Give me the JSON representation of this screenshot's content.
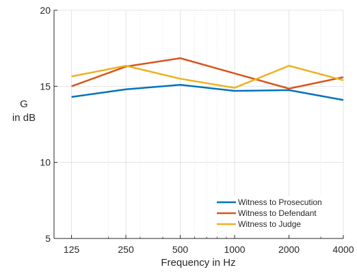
{
  "chart_data": {
    "type": "line",
    "xlabel": "Frequency in Hz",
    "ylabel_line1": "G",
    "ylabel_line2": "in dB",
    "x_scale": "log",
    "x": [
      125,
      250,
      500,
      1000,
      2000,
      4000
    ],
    "x_tick_labels": [
      "125",
      "250",
      "500",
      "1000",
      "2000",
      "4000"
    ],
    "ylim": [
      5,
      20
    ],
    "y_ticks": [
      5,
      10,
      15,
      20
    ],
    "y_tick_labels": [
      "5",
      "10",
      "15",
      "20"
    ],
    "grid": true,
    "legend_placement": "bottom-right",
    "series": [
      {
        "name": "Witness to Prosecution",
        "color": "#0072BD",
        "values": [
          14.3,
          14.8,
          15.1,
          14.7,
          14.75,
          14.1
        ]
      },
      {
        "name": "Witness to Defendant",
        "color": "#D95319",
        "values": [
          15.0,
          16.3,
          16.85,
          15.85,
          14.85,
          15.6
        ]
      },
      {
        "name": "Witness to Judge",
        "color": "#EDB120",
        "values": [
          15.65,
          16.35,
          15.5,
          14.9,
          16.35,
          15.4
        ]
      }
    ]
  }
}
